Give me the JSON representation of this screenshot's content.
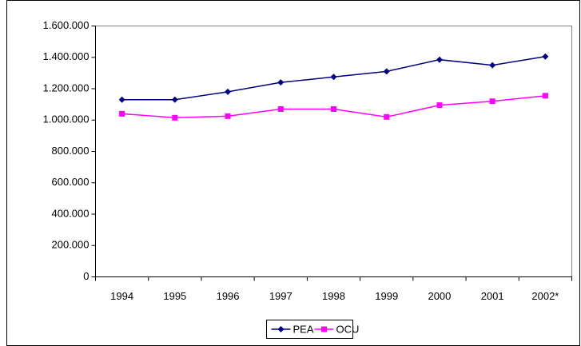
{
  "chart_data": {
    "type": "line",
    "categories": [
      "1994",
      "1995",
      "1996",
      "1997",
      "1998",
      "1999",
      "2000",
      "2001",
      "2002*"
    ],
    "series": [
      {
        "name": "PEA",
        "color": "#000080",
        "marker": "diamond",
        "values": [
          1130000,
          1130000,
          1180000,
          1240000,
          1275000,
          1310000,
          1385000,
          1350000,
          1405000
        ]
      },
      {
        "name": "OCU",
        "color": "#ff00ff",
        "marker": "square",
        "values": [
          1040000,
          1015000,
          1025000,
          1070000,
          1070000,
          1020000,
          1095000,
          1120000,
          1155000
        ]
      }
    ],
    "ylim": [
      0,
      1600000
    ],
    "yticks": [
      0,
      {
        "value": 200000,
        "label": "200.000"
      },
      {
        "value": 400000,
        "label": "400.000"
      },
      {
        "value": 600000,
        "label": "600.000"
      },
      {
        "value": 800000,
        "label": "800.000"
      },
      {
        "value": 1000000,
        "label": "1.000.000"
      },
      {
        "value": 1200000,
        "label": "1.200.000"
      },
      {
        "value": 1400000,
        "label": "1.400.000"
      },
      {
        "value": 1600000,
        "label": "1.600.000"
      }
    ],
    "grid": false,
    "legend": "bottom"
  }
}
